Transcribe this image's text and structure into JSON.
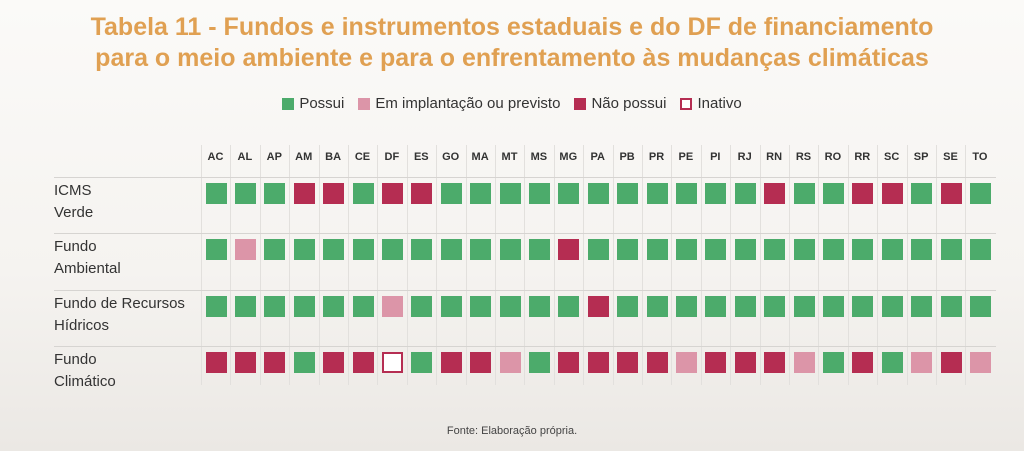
{
  "title": "Tabela 11 - Fundos e instrumentos estaduais e do DF de financiamento para o meio ambiente e para o enfrentamento às mudanças climáticas",
  "title_line1": "Tabela 11 - Fundos e instrumentos estaduais e do DF de financiamento",
  "title_line2": "para o meio ambiente e para o enfrentamento às mudanças climáticas",
  "legend": [
    {
      "key": "P",
      "label": "Possui",
      "color": "#4cab6b"
    },
    {
      "key": "I",
      "label": "Em implantação ou previsto",
      "color": "#dc95a8"
    },
    {
      "key": "N",
      "label": "Não possui",
      "color": "#b52d52"
    },
    {
      "key": "X",
      "label": "Inativo",
      "color": "#b52d52"
    }
  ],
  "states": [
    "AC",
    "AL",
    "AP",
    "AM",
    "BA",
    "CE",
    "DF",
    "ES",
    "GO",
    "MA",
    "MT",
    "MS",
    "MG",
    "PA",
    "PB",
    "PR",
    "PE",
    "PI",
    "RJ",
    "RN",
    "RS",
    "RO",
    "RR",
    "SC",
    "SP",
    "SE",
    "TO"
  ],
  "rows": [
    {
      "label1": "ICMS",
      "label2": "Verde",
      "values": [
        "P",
        "P",
        "P",
        "N",
        "N",
        "P",
        "N",
        "N",
        "P",
        "P",
        "P",
        "P",
        "P",
        "P",
        "P",
        "P",
        "P",
        "P",
        "P",
        "N",
        "P",
        "P",
        "N",
        "N",
        "P",
        "N",
        "P"
      ]
    },
    {
      "label1": "Fundo",
      "label2": "Ambiental",
      "values": [
        "P",
        "I",
        "P",
        "P",
        "P",
        "P",
        "P",
        "P",
        "P",
        "P",
        "P",
        "P",
        "N",
        "P",
        "P",
        "P",
        "P",
        "P",
        "P",
        "P",
        "P",
        "P",
        "P",
        "P",
        "P",
        "P",
        "P"
      ]
    },
    {
      "label1": "Fundo de Recursos",
      "label2": "Hídricos",
      "values": [
        "P",
        "P",
        "P",
        "P",
        "P",
        "P",
        "I",
        "P",
        "P",
        "P",
        "P",
        "P",
        "P",
        "N",
        "P",
        "P",
        "P",
        "P",
        "P",
        "P",
        "P",
        "P",
        "P",
        "P",
        "P",
        "P",
        "P"
      ]
    },
    {
      "label1": "Fundo",
      "label2": "Climático",
      "values": [
        "N",
        "N",
        "N",
        "P",
        "N",
        "N",
        "X",
        "P",
        "N",
        "N",
        "I",
        "P",
        "N",
        "N",
        "N",
        "N",
        "I",
        "N",
        "N",
        "N",
        "I",
        "P",
        "N",
        "P",
        "I",
        "N",
        "I"
      ]
    }
  ],
  "source": "Fonte: Elaboração própria."
}
